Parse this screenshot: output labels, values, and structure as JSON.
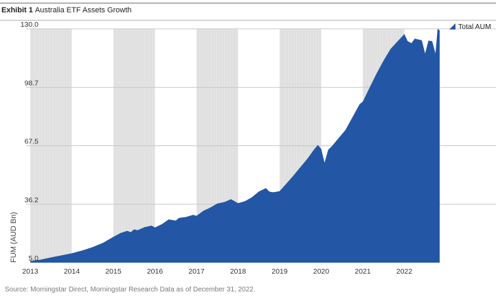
{
  "header": {
    "exhibit_label": "Exhibit 1",
    "title": "Australia ETF Assets Growth"
  },
  "footer": {
    "source": "Source: Morningstar Direct, Morningstar Research  Data as of December 31, 2022."
  },
  "colors": {
    "series": "#2356a4",
    "shade": "#e3e3e3",
    "grid": "#c8c8c8"
  },
  "chart_data": {
    "type": "area",
    "title": "Australia ETF Assets Growth",
    "xlabel": "",
    "ylabel": "FUM (AUD Bn)",
    "y_ticks": [
      "5.0",
      "36.2",
      "67.5",
      "98.7",
      "130.0"
    ],
    "ylim": [
      5.0,
      130.0
    ],
    "x_ticks": [
      "2013",
      "2014",
      "2015",
      "2016",
      "2017",
      "2018",
      "2019",
      "2020",
      "2021",
      "2022"
    ],
    "xlim": [
      2013.0,
      2022.85
    ],
    "grid": "horizontal",
    "shaded_bands": [
      [
        2013.0,
        2014.0
      ],
      [
        2015.0,
        2016.0
      ],
      [
        2017.0,
        2018.0
      ],
      [
        2019.0,
        2020.0
      ],
      [
        2021.0,
        2022.0
      ]
    ],
    "legend_position": "top-right",
    "series": [
      {
        "name": "Total AUM",
        "x": [
          2013.0,
          2013.25,
          2013.5,
          2013.75,
          2014.0,
          2014.25,
          2014.5,
          2014.75,
          2015.0,
          2015.17,
          2015.33,
          2015.42,
          2015.5,
          2015.58,
          2015.75,
          2015.92,
          2016.0,
          2016.17,
          2016.33,
          2016.5,
          2016.58,
          2016.75,
          2016.92,
          2017.0,
          2017.17,
          2017.33,
          2017.5,
          2017.67,
          2017.83,
          2018.0,
          2018.17,
          2018.33,
          2018.5,
          2018.67,
          2018.75,
          2018.83,
          2018.92,
          2019.0,
          2019.17,
          2019.33,
          2019.5,
          2019.67,
          2019.83,
          2019.92,
          2020.0,
          2020.08,
          2020.17,
          2020.25,
          2020.42,
          2020.58,
          2020.75,
          2020.92,
          2021.0,
          2021.17,
          2021.33,
          2021.5,
          2021.67,
          2021.83,
          2022.0,
          2022.08,
          2022.17,
          2022.25,
          2022.33,
          2022.42,
          2022.5,
          2022.58,
          2022.67,
          2022.75,
          2022.8,
          2022.85
        ],
        "values": [
          5.8,
          6.6,
          7.8,
          8.9,
          10.0,
          11.5,
          13.3,
          15.6,
          18.8,
          20.8,
          22.0,
          21.3,
          22.8,
          22.3,
          24.0,
          24.8,
          23.8,
          25.6,
          28.1,
          27.5,
          28.9,
          29.4,
          30.6,
          30.0,
          32.8,
          34.4,
          36.6,
          37.4,
          38.9,
          36.8,
          37.9,
          39.9,
          43.0,
          44.9,
          43.0,
          42.6,
          42.9,
          43.2,
          47.4,
          51.5,
          56.1,
          60.6,
          65.6,
          67.9,
          65.8,
          58.4,
          65.4,
          67.1,
          71.6,
          75.8,
          82.6,
          89.6,
          91.1,
          98.8,
          106.0,
          113.0,
          119.3,
          123.1,
          127.2,
          123.4,
          122.3,
          124.8,
          124.3,
          123.9,
          116.8,
          123.7,
          123.4,
          116.8,
          130.0,
          129.2
        ]
      }
    ]
  }
}
